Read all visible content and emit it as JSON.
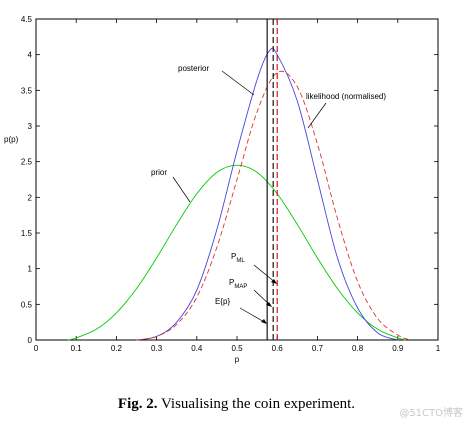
{
  "chart_data": {
    "type": "line",
    "xlabel": "p",
    "ylabel": "p(p)",
    "xlim": [
      0,
      1
    ],
    "ylim": [
      0,
      4.5
    ],
    "x_ticks": [
      "0",
      "0.1",
      "0.2",
      "0.3",
      "0.4",
      "0.5",
      "0.6",
      "0.7",
      "0.8",
      "0.9",
      "1"
    ],
    "y_ticks": [
      "0",
      "0.5",
      "1",
      "1.5",
      "2",
      "2.5",
      "3",
      "3.5",
      "4",
      "4.5"
    ],
    "series": [
      {
        "name": "prior",
        "color": "#00cc00",
        "style": "solid",
        "x": [
          0.08,
          0.1,
          0.15,
          0.2,
          0.25,
          0.3,
          0.35,
          0.4,
          0.45,
          0.5,
          0.55,
          0.6,
          0.65,
          0.7,
          0.75,
          0.8,
          0.85,
          0.9,
          0.92
        ],
        "y": [
          0.0,
          0.03,
          0.15,
          0.38,
          0.72,
          1.15,
          1.62,
          2.05,
          2.35,
          2.45,
          2.35,
          2.05,
          1.62,
          1.15,
          0.72,
          0.38,
          0.15,
          0.03,
          0.0
        ]
      },
      {
        "name": "posterior",
        "color": "#4444dd",
        "style": "solid",
        "x": [
          0.25,
          0.3,
          0.35,
          0.4,
          0.45,
          0.5,
          0.55,
          0.58,
          0.6,
          0.65,
          0.7,
          0.75,
          0.8,
          0.85,
          0.9
        ],
        "y": [
          0.0,
          0.05,
          0.25,
          0.7,
          1.55,
          2.65,
          3.65,
          4.05,
          4.0,
          3.35,
          2.25,
          1.15,
          0.45,
          0.1,
          0.0
        ]
      },
      {
        "name": "likelihood (normalised)",
        "color": "#dd3333",
        "style": "dashed",
        "x": [
          0.25,
          0.3,
          0.35,
          0.4,
          0.45,
          0.5,
          0.55,
          0.6,
          0.65,
          0.7,
          0.75,
          0.8,
          0.85,
          0.9,
          0.93
        ],
        "y": [
          0.0,
          0.05,
          0.22,
          0.6,
          1.3,
          2.25,
          3.2,
          3.75,
          3.55,
          2.75,
          1.7,
          0.82,
          0.3,
          0.07,
          0.0
        ]
      }
    ],
    "vlines": [
      {
        "label": "E{p}",
        "x": 0.575,
        "color": "#000000",
        "style": "solid"
      },
      {
        "label": "P_MAP",
        "x": 0.59,
        "color": "#000000",
        "style": "dashed"
      },
      {
        "label": "P_ML",
        "x": 0.6,
        "color": "#cc0000",
        "style": "dashed"
      }
    ],
    "annotations": {
      "prior": "prior",
      "posterior": "posterior",
      "likelihood": "likelihood (normalised)",
      "pml_main": "P",
      "pml_sub": "ML",
      "pmap_main": "P",
      "pmap_sub": "MAP",
      "ep": "E{p}"
    },
    "grid": false
  },
  "caption": {
    "label": "Fig. 2.",
    "text": " Visualising the coin experiment."
  },
  "watermark": "@51CTO博客"
}
